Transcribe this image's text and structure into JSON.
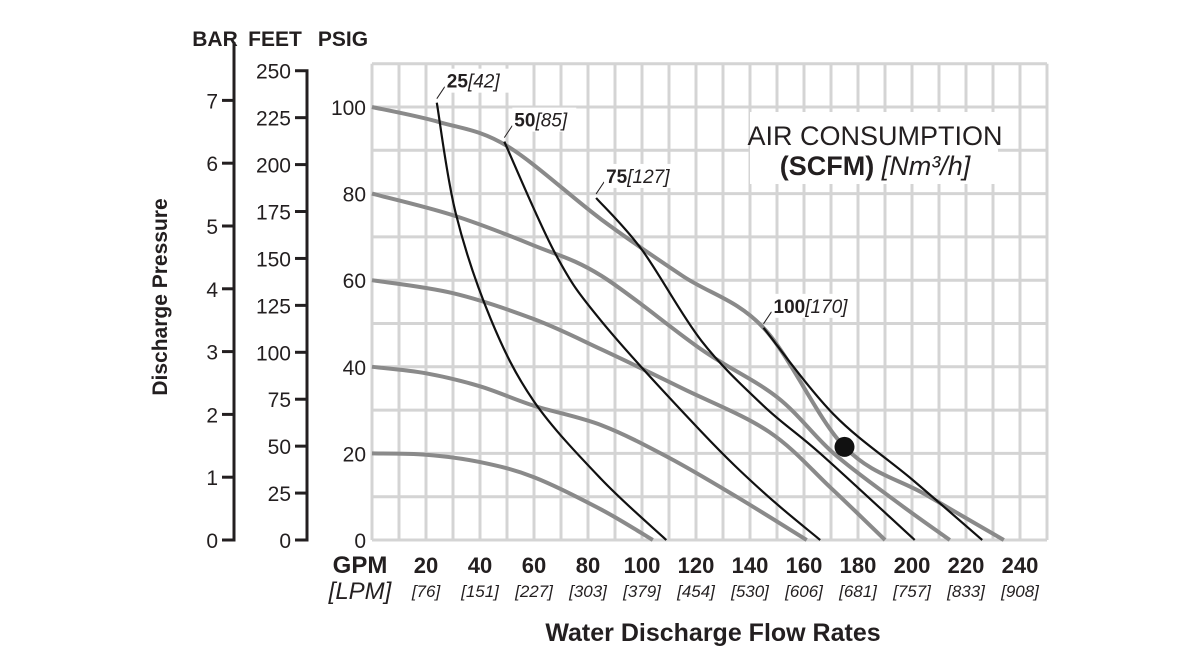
{
  "chart_data": {
    "type": "line",
    "title": "AIR CONSUMPTION",
    "subtitle_bold": "(SCFM)",
    "subtitle_italic": "[Nm³/h]",
    "xlabel": "Water Discharge Flow Rates",
    "ylabel": "Discharge Pressure",
    "x_unit_primary": "GPM",
    "x_unit_secondary": "[LPM]",
    "xlim": [
      0,
      250
    ],
    "ylim": [
      0,
      110
    ],
    "grid": true,
    "x_ticks": [
      {
        "gpm": 20,
        "label": "20",
        "lpm": "[76]"
      },
      {
        "gpm": 40,
        "label": "40",
        "lpm": "[151]"
      },
      {
        "gpm": 60,
        "label": "60",
        "lpm": "[227]"
      },
      {
        "gpm": 80,
        "label": "80",
        "lpm": "[303]"
      },
      {
        "gpm": 100,
        "label": "100",
        "lpm": "[379]"
      },
      {
        "gpm": 120,
        "label": "120",
        "lpm": "[454]"
      },
      {
        "gpm": 140,
        "label": "140",
        "lpm": "[530]"
      },
      {
        "gpm": 160,
        "label": "160",
        "lpm": "[606]"
      },
      {
        "gpm": 180,
        "label": "180",
        "lpm": "[681]"
      },
      {
        "gpm": 200,
        "label": "200",
        "lpm": "[757]"
      },
      {
        "gpm": 220,
        "label": "220",
        "lpm": "[833]"
      },
      {
        "gpm": 240,
        "label": "240",
        "lpm": "[908]"
      }
    ],
    "y_axes": [
      {
        "name": "BAR",
        "psig_per_unit": 14.5038,
        "ticks": [
          0,
          1,
          2,
          3,
          4,
          5,
          6,
          7
        ]
      },
      {
        "name": "FEET",
        "psig_per_unit": 0.4335,
        "ticks": [
          0,
          25,
          50,
          75,
          100,
          125,
          150,
          175,
          200,
          225,
          250
        ]
      },
      {
        "name": "PSIG",
        "psig_per_unit": 1,
        "ticks": [
          0,
          20,
          40,
          60,
          80,
          100
        ]
      }
    ],
    "pressure_curves": [
      {
        "name": "100 psig",
        "points": [
          [
            0,
            100
          ],
          [
            25,
            96.5
          ],
          [
            50,
            91
          ],
          [
            85,
            74
          ],
          [
            115,
            61
          ],
          [
            145,
            49
          ],
          [
            175,
            21.5
          ],
          [
            205,
            10.5
          ],
          [
            234,
            0
          ]
        ]
      },
      {
        "name": "80 psig",
        "points": [
          [
            0,
            80
          ],
          [
            30,
            75
          ],
          [
            60,
            68
          ],
          [
            85,
            61
          ],
          [
            122,
            44
          ],
          [
            150,
            33
          ],
          [
            171,
            20
          ],
          [
            195,
            8.5
          ],
          [
            214,
            0
          ]
        ]
      },
      {
        "name": "60 psig",
        "points": [
          [
            0,
            60
          ],
          [
            30,
            57
          ],
          [
            60,
            51
          ],
          [
            85,
            44
          ],
          [
            115,
            35
          ],
          [
            147,
            25
          ],
          [
            170,
            12
          ],
          [
            190,
            0
          ]
        ]
      },
      {
        "name": "40 psig",
        "points": [
          [
            0,
            40
          ],
          [
            20,
            38.5
          ],
          [
            40,
            35.5
          ],
          [
            60,
            31
          ],
          [
            85,
            26.5
          ],
          [
            110,
            19
          ],
          [
            135,
            10
          ],
          [
            161,
            0
          ]
        ]
      },
      {
        "name": "20 psig",
        "points": [
          [
            0,
            20
          ],
          [
            20,
            19.7
          ],
          [
            40,
            18
          ],
          [
            60,
            14.5
          ],
          [
            85,
            7
          ],
          [
            104,
            0
          ]
        ]
      }
    ],
    "air_curves": [
      {
        "label_bold": "25",
        "label_italic": "[42]",
        "points": [
          [
            24,
            101
          ],
          [
            31,
            75.5
          ],
          [
            44,
            51
          ],
          [
            60,
            32
          ],
          [
            85,
            14
          ],
          [
            109,
            0
          ]
        ]
      },
      {
        "label_bold": "50",
        "label_italic": "[85]",
        "points": [
          [
            49,
            92
          ],
          [
            68,
            66
          ],
          [
            85,
            50.5
          ],
          [
            122,
            25
          ],
          [
            145,
            11
          ],
          [
            166,
            0
          ]
        ]
      },
      {
        "label_bold": "75",
        "label_italic": "[127]",
        "points": [
          [
            83,
            79
          ],
          [
            100,
            67
          ],
          [
            122,
            46
          ],
          [
            145,
            31
          ],
          [
            166,
            20
          ],
          [
            201,
            0
          ]
        ]
      },
      {
        "label_bold": "100",
        "label_italic": "[170]",
        "points": [
          [
            145,
            49
          ],
          [
            171,
            29
          ],
          [
            200,
            14
          ],
          [
            226,
            0
          ]
        ]
      }
    ],
    "marker": {
      "gpm": 175,
      "psig": 21.5
    },
    "colors": {
      "pressure": "#8a8a8a",
      "air": "#111111",
      "grid": "#d4d4d4",
      "text": "#231f20"
    }
  }
}
